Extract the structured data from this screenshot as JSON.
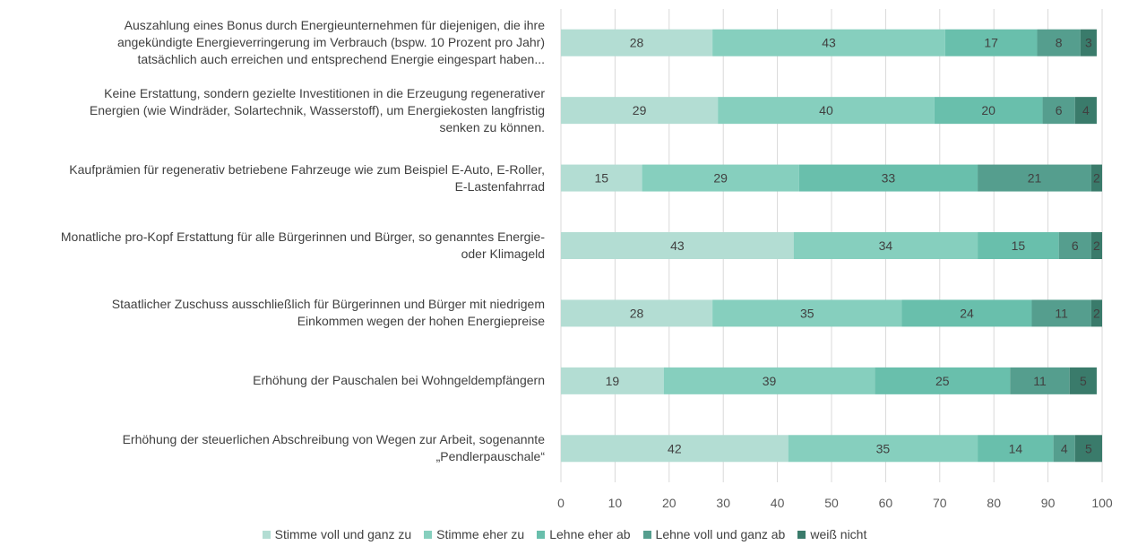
{
  "chart_data": {
    "type": "bar",
    "orientation": "horizontal",
    "stacked": true,
    "title": "",
    "xlabel": "",
    "ylabel": "",
    "xlim": [
      0,
      100
    ],
    "x_ticks": [
      0,
      10,
      20,
      30,
      40,
      50,
      60,
      70,
      80,
      90,
      100
    ],
    "grid": "vertical",
    "legend_position": "bottom",
    "categories": [
      "Auszahlung eines Bonus durch Energieunternehmen für diejenigen, die ihre angekündigte Energieverringerung im Verbrauch (bspw. 10 Prozent pro Jahr) tatsächlich auch erreichen und entsprechend Energie eingespart haben...",
      "Keine Erstattung, sondern gezielte Investitionen in die Erzeugung regenerativer Energien (wie Windräder, Solartechnik, Wasserstoff), um Energiekosten langfristig senken zu können.",
      "Kaufprämien für regenerativ betriebene Fahrzeuge wie zum Beispiel E-Auto, E-Roller, E-Lastenfahrrad",
      "Monatliche pro-Kopf Erstattung für alle Bürgerinnen und Bürger, so genanntes Energie- oder Klimageld",
      "Staatlicher Zuschuss ausschließlich für Bürgerinnen und Bürger mit niedrigem Einkommen wegen der hohen Energiepreise",
      "Erhöhung der Pauschalen bei Wohngeldempfängern",
      "Erhöhung der steuerlichen Abschreibung von Wegen zur Arbeit, sogenannte „Pendlerpauschale“"
    ],
    "category_lines": [
      [
        "Auszahlung eines Bonus durch Energieunternehmen für diejenigen, die ihre",
        "angekündigte Energieverringerung im Verbrauch (bspw. 10 Prozent pro Jahr)",
        "tatsächlich auch erreichen und entsprechend Energie eingespart haben..."
      ],
      [
        "Keine Erstattung, sondern gezielte Investitionen in die Erzeugung regenerativer",
        "Energien (wie Windräder, Solartechnik, Wasserstoff), um Energiekosten langfristig",
        "senken zu können."
      ],
      [
        "Kaufprämien für regenerativ betriebene Fahrzeuge wie zum Beispiel E-Auto, E-Roller,",
        "E-Lastenfahrrad"
      ],
      [
        "Monatliche pro-Kopf Erstattung für alle Bürgerinnen und Bürger, so genanntes Energie-",
        "oder Klimageld"
      ],
      [
        "Staatlicher Zuschuss ausschließlich für Bürgerinnen und Bürger mit niedrigem",
        "Einkommen wegen der hohen Energiepreise"
      ],
      [
        "Erhöhung der Pauschalen bei Wohngeldempfängern"
      ],
      [
        "Erhöhung der steuerlichen Abschreibung von Wegen zur Arbeit, sogenannte",
        "„Pendlerpauschale“"
      ]
    ],
    "series": [
      {
        "name": "Stimme voll und ganz zu",
        "color": "#b3ddd3",
        "values": [
          28,
          29,
          15,
          43,
          28,
          19,
          42
        ]
      },
      {
        "name": "Stimme eher zu",
        "color": "#86cfbe",
        "values": [
          43,
          40,
          29,
          34,
          35,
          39,
          35
        ]
      },
      {
        "name": "Lehne eher ab",
        "color": "#69bfac",
        "values": [
          17,
          20,
          33,
          15,
          24,
          25,
          14
        ]
      },
      {
        "name": "Lehne voll und ganz ab",
        "color": "#559e8e",
        "values": [
          8,
          6,
          21,
          6,
          11,
          11,
          4
        ]
      },
      {
        "name": "weiß nicht",
        "color": "#3a7b6b",
        "values": [
          3,
          4,
          2,
          2,
          2,
          5,
          5
        ]
      }
    ]
  }
}
